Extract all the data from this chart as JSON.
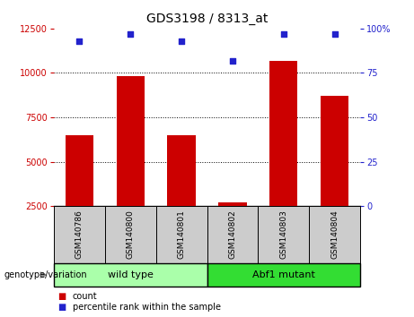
{
  "title": "GDS3198 / 8313_at",
  "samples": [
    "GSM140786",
    "GSM140800",
    "GSM140801",
    "GSM140802",
    "GSM140803",
    "GSM140804"
  ],
  "counts": [
    6500,
    9800,
    6500,
    2700,
    10700,
    8700
  ],
  "percentile_ranks": [
    93,
    97,
    93,
    82,
    97,
    97
  ],
  "bar_color": "#cc0000",
  "dot_color": "#2222cc",
  "ylim_left": [
    2500,
    12500
  ],
  "ylim_right": [
    0,
    100
  ],
  "yticks_left": [
    2500,
    5000,
    7500,
    10000,
    12500
  ],
  "yticks_right": [
    0,
    25,
    50,
    75,
    100
  ],
  "groups": [
    {
      "label": "wild type",
      "indices": [
        0,
        1,
        2
      ],
      "color": "#aaffaa"
    },
    {
      "label": "Abf1 mutant",
      "indices": [
        3,
        4,
        5
      ],
      "color": "#33dd33"
    }
  ],
  "group_label": "genotype/variation",
  "legend_count_label": "count",
  "legend_pct_label": "percentile rank within the sample",
  "bar_width": 0.55,
  "title_fontsize": 10,
  "tick_fontsize": 7,
  "label_fontsize": 7.5,
  "left_axis_color": "#cc0000",
  "right_axis_color": "#2222cc",
  "sample_box_color": "#cccccc",
  "sample_label_fontsize": 6.5,
  "group_label_fontsize": 8
}
